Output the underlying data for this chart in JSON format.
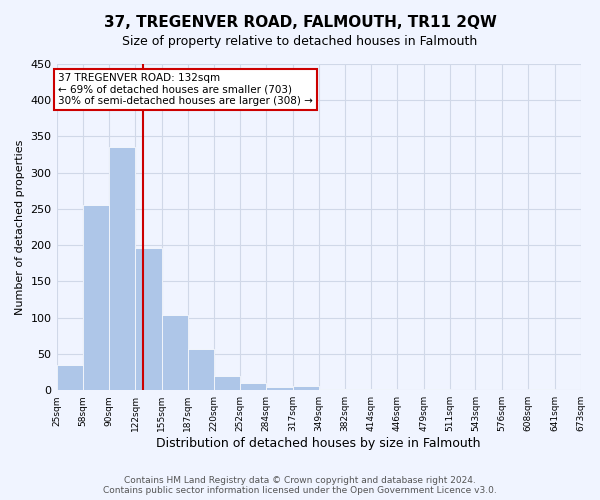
{
  "title": "37, TREGENVER ROAD, FALMOUTH, TR11 2QW",
  "subtitle": "Size of property relative to detached houses in Falmouth",
  "xlabel": "Distribution of detached houses by size in Falmouth",
  "ylabel": "Number of detached properties",
  "bar_values": [
    35,
    256,
    335,
    196,
    104,
    57,
    19,
    10,
    5,
    6,
    2,
    1,
    1,
    0,
    1,
    0,
    0,
    0,
    2,
    0
  ],
  "bin_labels": [
    "25sqm",
    "58sqm",
    "90sqm",
    "122sqm",
    "155sqm",
    "187sqm",
    "220sqm",
    "252sqm",
    "284sqm",
    "317sqm",
    "349sqm",
    "382sqm",
    "414sqm",
    "446sqm",
    "479sqm",
    "511sqm",
    "543sqm",
    "576sqm",
    "608sqm",
    "641sqm",
    "673sqm"
  ],
  "bar_color": "#aec6e8",
  "grid_color": "#d0d8e8",
  "background_color": "#f0f4ff",
  "property_line_x": 132,
  "property_line_color": "#cc0000",
  "annotation_text": "37 TREGENVER ROAD: 132sqm\n← 69% of detached houses are smaller (703)\n30% of semi-detached houses are larger (308) →",
  "annotation_box_color": "#cc0000",
  "annotation_text_color": "#000000",
  "annotation_bg_color": "#ffffff",
  "ylim": [
    0,
    450
  ],
  "yticks": [
    0,
    50,
    100,
    150,
    200,
    250,
    300,
    350,
    400,
    450
  ],
  "footnote": "Contains HM Land Registry data © Crown copyright and database right 2024.\nContains public sector information licensed under the Open Government Licence v3.0.",
  "bin_edges": [
    25,
    58,
    90,
    122,
    155,
    187,
    220,
    252,
    284,
    317,
    349,
    382,
    414,
    446,
    479,
    511,
    543,
    576,
    608,
    641,
    673
  ]
}
